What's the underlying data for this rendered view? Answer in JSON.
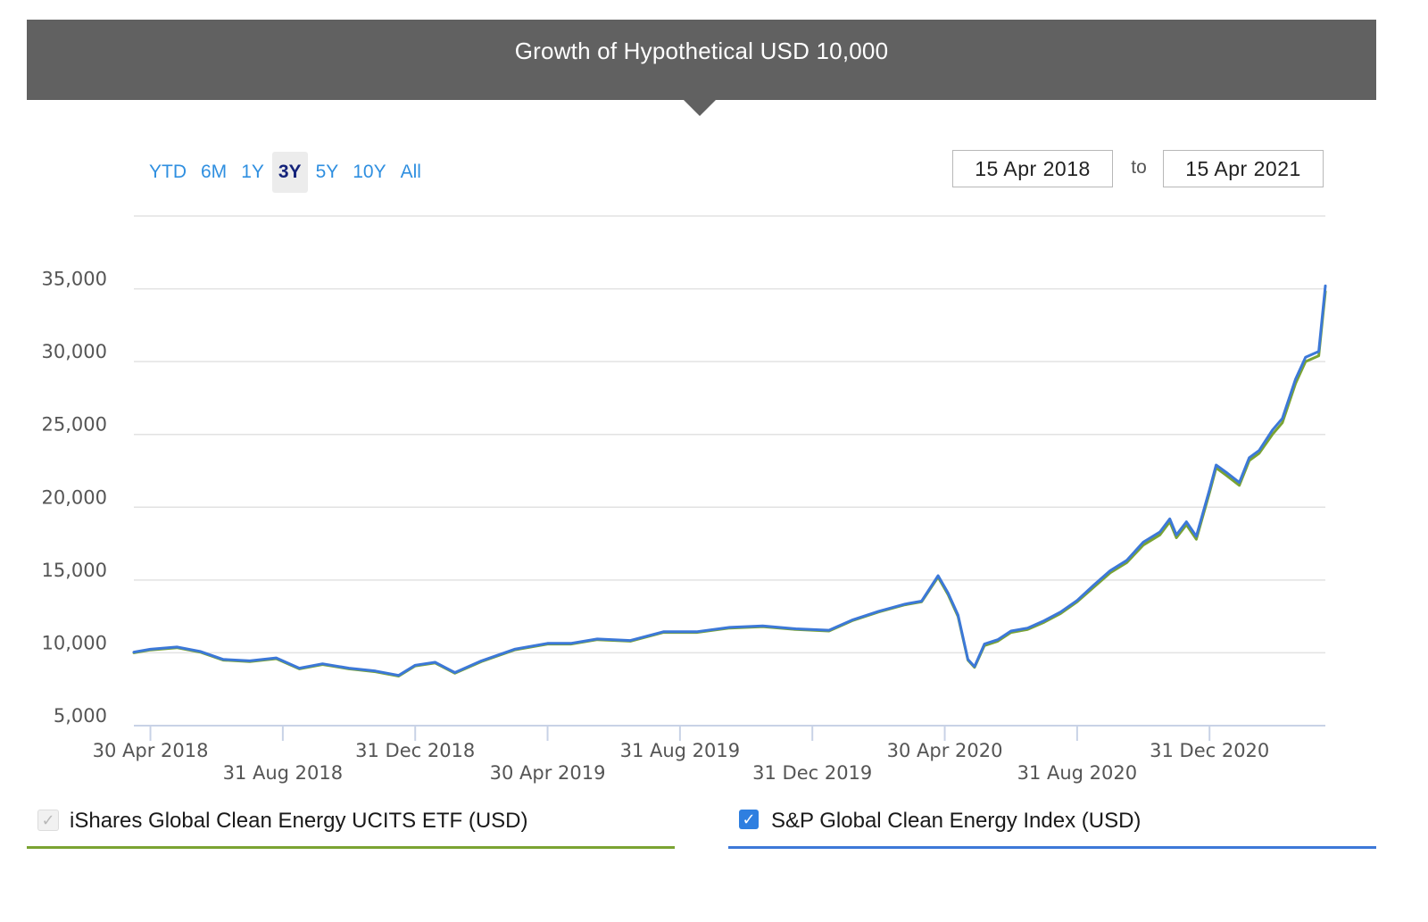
{
  "header": {
    "title": "Growth of Hypothetical USD 10,000"
  },
  "range_buttons": [
    {
      "label": "YTD",
      "active": false
    },
    {
      "label": "6M",
      "active": false
    },
    {
      "label": "1Y",
      "active": false
    },
    {
      "label": "3Y",
      "active": true
    },
    {
      "label": "5Y",
      "active": false
    },
    {
      "label": "10Y",
      "active": false
    },
    {
      "label": "All",
      "active": false
    }
  ],
  "date_range": {
    "from": "15 Apr 2018",
    "separator": "to",
    "to": "15 Apr 2021"
  },
  "legend": [
    {
      "label": "iShares Global Clean Energy UCITS ETF (USD)",
      "color": "#7aa332",
      "checked": true,
      "disabled": true
    },
    {
      "label": "S&P Global Clean Energy Index (USD)",
      "color": "#3c78d8",
      "checked": true,
      "disabled": false
    }
  ],
  "chart_data": {
    "type": "line",
    "title": "Growth of Hypothetical USD 10,000",
    "xlabel": "",
    "ylabel": "",
    "x_range_months": [
      -0.5,
      35.5
    ],
    "ylim": [
      5000,
      40000
    ],
    "yticks": [
      {
        "label": "5,000",
        "value": 5000
      },
      {
        "label": "10,000",
        "value": 10000
      },
      {
        "label": "15,000",
        "value": 15000
      },
      {
        "label": "20,000",
        "value": 20000
      },
      {
        "label": "25,000",
        "value": 25000
      },
      {
        "label": "30,000",
        "value": 30000
      },
      {
        "label": "35,000",
        "value": 35000
      }
    ],
    "xticks": [
      {
        "label": "30 Apr 2018",
        "month": 0,
        "row": 0
      },
      {
        "label": "31 Aug 2018",
        "month": 4,
        "row": 1
      },
      {
        "label": "31 Dec 2018",
        "month": 8,
        "row": 0
      },
      {
        "label": "30 Apr 2019",
        "month": 12,
        "row": 1
      },
      {
        "label": "31 Aug 2019",
        "month": 16,
        "row": 0
      },
      {
        "label": "31 Dec 2019",
        "month": 20,
        "row": 1
      },
      {
        "label": "30 Apr 2020",
        "month": 24,
        "row": 0
      },
      {
        "label": "31 Aug 2020",
        "month": 28,
        "row": 1
      },
      {
        "label": "31 Dec 2020",
        "month": 32,
        "row": 0
      }
    ],
    "series": [
      {
        "name": "iShares Global Clean Energy UCITS ETF (USD)",
        "color": "#7aa332",
        "points": [
          [
            -0.5,
            10000
          ],
          [
            0,
            10200
          ],
          [
            0.8,
            10350
          ],
          [
            1.5,
            10050
          ],
          [
            2.2,
            9500
          ],
          [
            3,
            9400
          ],
          [
            3.8,
            9600
          ],
          [
            4.5,
            8900
          ],
          [
            5.2,
            9200
          ],
          [
            6,
            8900
          ],
          [
            6.8,
            8700
          ],
          [
            7.5,
            8400
          ],
          [
            8,
            9100
          ],
          [
            8.6,
            9300
          ],
          [
            9.2,
            8600
          ],
          [
            10,
            9400
          ],
          [
            11,
            10200
          ],
          [
            12,
            10600
          ],
          [
            12.7,
            10600
          ],
          [
            13.5,
            10900
          ],
          [
            14.5,
            10800
          ],
          [
            15.5,
            11400
          ],
          [
            16.5,
            11400
          ],
          [
            17.5,
            11700
          ],
          [
            18.5,
            11800
          ],
          [
            19.5,
            11600
          ],
          [
            20.5,
            11500
          ],
          [
            21.2,
            12200
          ],
          [
            22,
            12800
          ],
          [
            22.8,
            13300
          ],
          [
            23.3,
            13500
          ],
          [
            23.8,
            15200
          ],
          [
            24.1,
            14000
          ],
          [
            24.4,
            12500
          ],
          [
            24.7,
            9500
          ],
          [
            24.9,
            9000
          ],
          [
            25.2,
            10500
          ],
          [
            25.6,
            10800
          ],
          [
            26,
            11400
          ],
          [
            26.5,
            11600
          ],
          [
            27,
            12100
          ],
          [
            27.5,
            12700
          ],
          [
            28,
            13500
          ],
          [
            28.5,
            14500
          ],
          [
            29,
            15500
          ],
          [
            29.5,
            16200
          ],
          [
            30,
            17400
          ],
          [
            30.5,
            18100
          ],
          [
            30.8,
            19000
          ],
          [
            31,
            17900
          ],
          [
            31.3,
            18800
          ],
          [
            31.6,
            17800
          ],
          [
            32,
            21000
          ],
          [
            32.2,
            22700
          ],
          [
            32.5,
            22200
          ],
          [
            32.9,
            21500
          ],
          [
            33.2,
            23200
          ],
          [
            33.5,
            23700
          ],
          [
            33.9,
            25000
          ],
          [
            34.2,
            25800
          ],
          [
            34.6,
            28500
          ],
          [
            34.9,
            30000
          ],
          [
            35.3,
            30400
          ],
          [
            35.5,
            34800
          ]
        ]
      },
      {
        "name": "S&P Global Clean Energy Index (USD)",
        "color": "#3c78d8",
        "points": [
          [
            -0.5,
            10050
          ],
          [
            0,
            10250
          ],
          [
            0.8,
            10400
          ],
          [
            1.5,
            10100
          ],
          [
            2.2,
            9550
          ],
          [
            3,
            9450
          ],
          [
            3.8,
            9650
          ],
          [
            4.5,
            8950
          ],
          [
            5.2,
            9250
          ],
          [
            6,
            8950
          ],
          [
            6.8,
            8750
          ],
          [
            7.5,
            8450
          ],
          [
            8,
            9150
          ],
          [
            8.6,
            9350
          ],
          [
            9.2,
            8650
          ],
          [
            10,
            9450
          ],
          [
            11,
            10250
          ],
          [
            12,
            10650
          ],
          [
            12.7,
            10650
          ],
          [
            13.5,
            10950
          ],
          [
            14.5,
            10850
          ],
          [
            15.5,
            11450
          ],
          [
            16.5,
            11450
          ],
          [
            17.5,
            11750
          ],
          [
            18.5,
            11850
          ],
          [
            19.5,
            11650
          ],
          [
            20.5,
            11550
          ],
          [
            21.2,
            12250
          ],
          [
            22,
            12850
          ],
          [
            22.8,
            13350
          ],
          [
            23.3,
            13550
          ],
          [
            23.8,
            15300
          ],
          [
            24.1,
            14100
          ],
          [
            24.4,
            12600
          ],
          [
            24.7,
            9550
          ],
          [
            24.9,
            9050
          ],
          [
            25.2,
            10600
          ],
          [
            25.6,
            10900
          ],
          [
            26,
            11500
          ],
          [
            26.5,
            11700
          ],
          [
            27,
            12200
          ],
          [
            27.5,
            12800
          ],
          [
            28,
            13600
          ],
          [
            28.5,
            14650
          ],
          [
            29,
            15650
          ],
          [
            29.5,
            16350
          ],
          [
            30,
            17600
          ],
          [
            30.5,
            18300
          ],
          [
            30.8,
            19200
          ],
          [
            31,
            18100
          ],
          [
            31.3,
            19000
          ],
          [
            31.6,
            18000
          ],
          [
            32,
            21200
          ],
          [
            32.2,
            22900
          ],
          [
            32.5,
            22400
          ],
          [
            32.9,
            21700
          ],
          [
            33.2,
            23400
          ],
          [
            33.5,
            23900
          ],
          [
            33.9,
            25300
          ],
          [
            34.2,
            26100
          ],
          [
            34.6,
            28800
          ],
          [
            34.9,
            30300
          ],
          [
            35.3,
            30700
          ],
          [
            35.5,
            35200
          ]
        ]
      }
    ]
  }
}
